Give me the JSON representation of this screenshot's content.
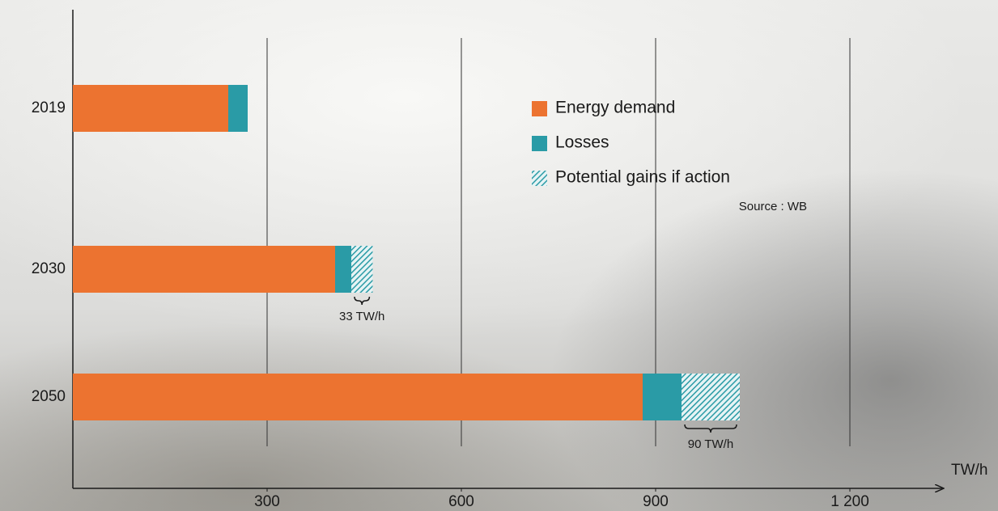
{
  "chart_data": {
    "type": "bar",
    "orientation": "horizontal",
    "stacked": true,
    "categories": [
      "2019",
      "2030",
      "2050"
    ],
    "series": [
      {
        "name": "Energy demand",
        "color": "#ec7330",
        "values": [
          240,
          405,
          880
        ]
      },
      {
        "name": "Losses",
        "color": "#2a9ba6",
        "values": [
          30,
          25,
          60
        ]
      },
      {
        "name": "Potential gains if action",
        "color": "#2a9ba6",
        "hatch": true,
        "values": [
          null,
          33,
          90
        ],
        "value_labels": [
          null,
          "33 TW/h",
          "90 TW/h"
        ]
      }
    ],
    "xlabel": "TW/h",
    "xlim": [
      0,
      1340
    ],
    "xticks": [
      300,
      600,
      900,
      {
        "value": 1200,
        "label": "1 200"
      }
    ],
    "grid": true,
    "annotation": "Source : WB"
  }
}
